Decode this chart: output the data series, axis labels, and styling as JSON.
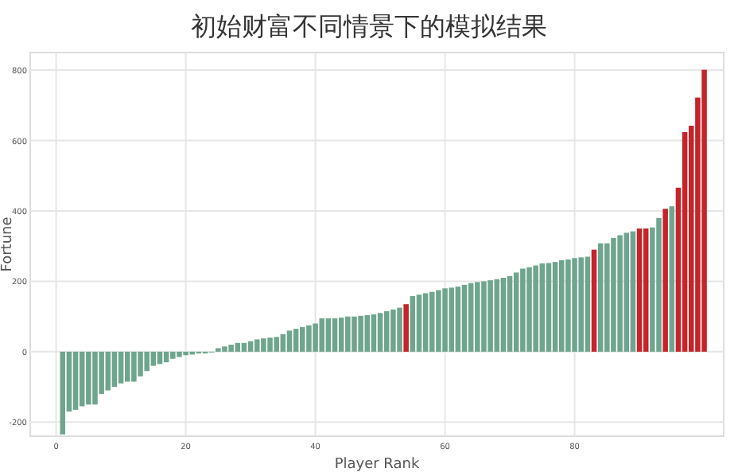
{
  "chart_data": {
    "type": "bar",
    "title": "初始财富不同情景下的模拟结果",
    "xlabel": "Player Rank",
    "ylabel": "Fortune",
    "x": [
      1,
      2,
      3,
      4,
      5,
      6,
      7,
      8,
      9,
      10,
      11,
      12,
      13,
      14,
      15,
      16,
      17,
      18,
      19,
      20,
      21,
      22,
      23,
      24,
      25,
      26,
      27,
      28,
      29,
      30,
      31,
      32,
      33,
      34,
      35,
      36,
      37,
      38,
      39,
      40,
      41,
      42,
      43,
      44,
      45,
      46,
      47,
      48,
      49,
      50,
      51,
      52,
      53,
      54,
      55,
      56,
      57,
      58,
      59,
      60,
      61,
      62,
      63,
      64,
      65,
      66,
      67,
      68,
      69,
      70,
      71,
      72,
      73,
      74,
      75,
      76,
      77,
      78,
      79,
      80,
      81,
      82,
      83,
      84,
      85,
      86,
      87,
      88,
      89,
      90,
      91,
      92,
      93,
      94,
      95,
      96,
      97,
      98,
      99,
      100
    ],
    "values": [
      -235,
      -170,
      -165,
      -155,
      -150,
      -150,
      -120,
      -110,
      -100,
      -90,
      -85,
      -85,
      -70,
      -55,
      -40,
      -35,
      -30,
      -20,
      -15,
      -10,
      -8,
      -5,
      -5,
      -2,
      10,
      15,
      20,
      25,
      25,
      30,
      35,
      38,
      40,
      42,
      50,
      60,
      65,
      70,
      75,
      80,
      95,
      95,
      95,
      97,
      100,
      100,
      102,
      104,
      106,
      110,
      115,
      120,
      125,
      135,
      158,
      162,
      166,
      170,
      175,
      180,
      182,
      185,
      190,
      195,
      198,
      200,
      203,
      206,
      210,
      215,
      225,
      236,
      240,
      245,
      251,
      252,
      255,
      260,
      262,
      266,
      268,
      270,
      290,
      308,
      308,
      323,
      331,
      338,
      342,
      350,
      350,
      353,
      380,
      406,
      413,
      466,
      624,
      642,
      722,
      801
    ],
    "colors": [
      "#6fa58e",
      "#6fa58e",
      "#6fa58e",
      "#6fa58e",
      "#6fa58e",
      "#6fa58e",
      "#6fa58e",
      "#6fa58e",
      "#6fa58e",
      "#6fa58e",
      "#6fa58e",
      "#6fa58e",
      "#6fa58e",
      "#6fa58e",
      "#6fa58e",
      "#6fa58e",
      "#6fa58e",
      "#6fa58e",
      "#6fa58e",
      "#6fa58e",
      "#6fa58e",
      "#6fa58e",
      "#6fa58e",
      "#6fa58e",
      "#6fa58e",
      "#6fa58e",
      "#6fa58e",
      "#6fa58e",
      "#6fa58e",
      "#6fa58e",
      "#6fa58e",
      "#6fa58e",
      "#6fa58e",
      "#6fa58e",
      "#6fa58e",
      "#6fa58e",
      "#6fa58e",
      "#6fa58e",
      "#6fa58e",
      "#6fa58e",
      "#6fa58e",
      "#6fa58e",
      "#6fa58e",
      "#6fa58e",
      "#6fa58e",
      "#6fa58e",
      "#6fa58e",
      "#6fa58e",
      "#6fa58e",
      "#6fa58e",
      "#6fa58e",
      "#6fa58e",
      "#6fa58e",
      "#c4242a",
      "#6fa58e",
      "#6fa58e",
      "#6fa58e",
      "#6fa58e",
      "#6fa58e",
      "#6fa58e",
      "#6fa58e",
      "#6fa58e",
      "#6fa58e",
      "#6fa58e",
      "#6fa58e",
      "#6fa58e",
      "#6fa58e",
      "#6fa58e",
      "#6fa58e",
      "#6fa58e",
      "#6fa58e",
      "#6fa58e",
      "#6fa58e",
      "#6fa58e",
      "#6fa58e",
      "#6fa58e",
      "#6fa58e",
      "#6fa58e",
      "#6fa58e",
      "#6fa58e",
      "#6fa58e",
      "#6fa58e",
      "#c4242a",
      "#6fa58e",
      "#6fa58e",
      "#6fa58e",
      "#6fa58e",
      "#6fa58e",
      "#6fa58e",
      "#c4242a",
      "#c4242a",
      "#6fa58e",
      "#6fa58e",
      "#c4242a",
      "#6fa58e",
      "#c4242a",
      "#c4242a",
      "#c4242a",
      "#c4242a",
      "#c4242a"
    ],
    "xlim": [
      -4,
      103
    ],
    "xticks": [
      0,
      20,
      40,
      60,
      80
    ],
    "ylim": [
      -240,
      850
    ],
    "yticks": [
      -200,
      0,
      200,
      400,
      600,
      800
    ],
    "grid": true
  }
}
